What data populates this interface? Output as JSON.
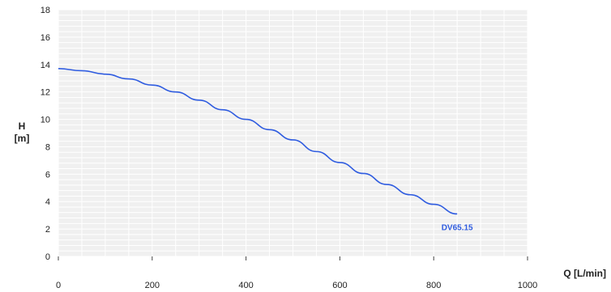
{
  "chart_data": {
    "type": "line",
    "xlabel": "Q [L/min]",
    "ylabel_lines": [
      "H",
      "[m]"
    ],
    "xlim": [
      0,
      1000
    ],
    "ylim": [
      0,
      18
    ],
    "x_ticks": [
      0,
      200,
      400,
      600,
      800,
      1000
    ],
    "y_ticks": [
      0,
      2,
      4,
      6,
      8,
      10,
      12,
      14,
      16,
      18
    ],
    "grid": true,
    "series": [
      {
        "name": "DV65.15",
        "color": "#2f5ce0",
        "x": [
          0,
          50,
          100,
          150,
          200,
          250,
          300,
          350,
          400,
          450,
          500,
          550,
          600,
          650,
          700,
          750,
          800,
          850
        ],
        "y": [
          13.7,
          13.55,
          13.3,
          12.95,
          12.5,
          12.0,
          11.4,
          10.7,
          10.0,
          9.25,
          8.5,
          7.65,
          6.85,
          6.05,
          5.25,
          4.5,
          3.8,
          3.1
        ]
      }
    ],
    "colors": {
      "plot_background": "#f0f0f0",
      "grid": "#ffffff",
      "text": "#222222"
    }
  }
}
